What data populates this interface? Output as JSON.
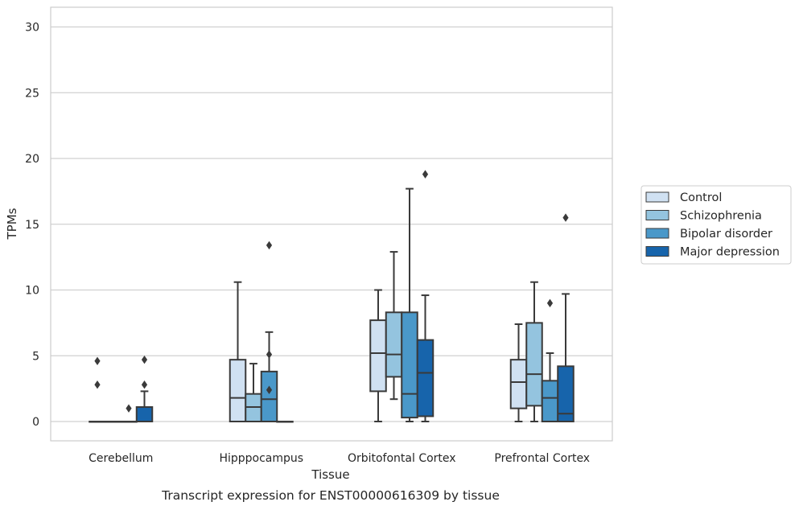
{
  "caption": "Transcript expression for ENST00000616309 by tissue",
  "chart_data": {
    "type": "box",
    "xlabel": "Tissue",
    "ylabel": "TPMs",
    "ylim": [
      -1.4,
      31.5
    ],
    "yticks": [
      0,
      5,
      10,
      15,
      20,
      25,
      30
    ],
    "grid": true,
    "legend_position": "right",
    "categories": [
      "Cerebellum",
      "Hipppocampus",
      "Orbitofontal Cortex",
      "Prefrontal Cortex"
    ],
    "series": [
      {
        "name": "Control",
        "color": "#d0e1f2",
        "boxes": [
          {
            "whislo": 0,
            "q1": 0,
            "med": 0,
            "q3": 0,
            "whishi": 0,
            "fliers": [
              2.8,
              4.6
            ]
          },
          {
            "whislo": 0,
            "q1": 0,
            "med": 1.8,
            "q3": 4.7,
            "whishi": 10.6,
            "fliers": []
          },
          {
            "whislo": 0,
            "q1": 2.3,
            "med": 5.2,
            "q3": 7.7,
            "whishi": 10.0,
            "fliers": []
          },
          {
            "whislo": 0,
            "q1": 1.0,
            "med": 3.0,
            "q3": 4.7,
            "whishi": 7.4,
            "fliers": []
          }
        ]
      },
      {
        "name": "Schizophrenia",
        "color": "#94c4df",
        "boxes": [
          {
            "whislo": 0,
            "q1": 0,
            "med": 0,
            "q3": 0,
            "whishi": 0,
            "fliers": []
          },
          {
            "whislo": 0,
            "q1": 0,
            "med": 1.1,
            "q3": 2.1,
            "whishi": 4.4,
            "fliers": []
          },
          {
            "whislo": 1.7,
            "q1": 3.4,
            "med": 5.1,
            "q3": 8.3,
            "whishi": 12.9,
            "fliers": []
          },
          {
            "whislo": 0,
            "q1": 1.2,
            "med": 3.6,
            "q3": 7.5,
            "whishi": 10.6,
            "fliers": []
          }
        ]
      },
      {
        "name": "Bipolar disorder",
        "color": "#4a98c9",
        "boxes": [
          {
            "whislo": 0,
            "q1": 0,
            "med": 0,
            "q3": 0,
            "whishi": 0,
            "fliers": [
              1.0
            ]
          },
          {
            "whislo": 0,
            "q1": 0,
            "med": 1.7,
            "q3": 3.8,
            "whishi": 6.8,
            "fliers": [
              2.4,
              5.1,
              13.4
            ]
          },
          {
            "whislo": 0,
            "q1": 0.3,
            "med": 2.1,
            "q3": 8.3,
            "whishi": 17.7,
            "fliers": []
          },
          {
            "whislo": 0,
            "q1": 0,
            "med": 1.8,
            "q3": 3.1,
            "whishi": 5.2,
            "fliers": [
              9.0
            ]
          }
        ]
      },
      {
        "name": "Major depression",
        "color": "#1764ab",
        "boxes": [
          {
            "whislo": 0,
            "q1": 0,
            "med": 0,
            "q3": 1.1,
            "whishi": 2.3,
            "fliers": [
              2.8,
              4.7
            ]
          },
          {
            "whislo": 0,
            "q1": 0,
            "med": 0,
            "q3": 0,
            "whishi": 0,
            "fliers": []
          },
          {
            "whislo": 0,
            "q1": 0.4,
            "med": 3.7,
            "q3": 6.2,
            "whishi": 9.6,
            "fliers": [
              18.8
            ]
          },
          {
            "whislo": 0,
            "q1": 0,
            "med": 0.6,
            "q3": 4.2,
            "whishi": 9.7,
            "fliers": [
              15.5
            ]
          }
        ]
      }
    ]
  }
}
